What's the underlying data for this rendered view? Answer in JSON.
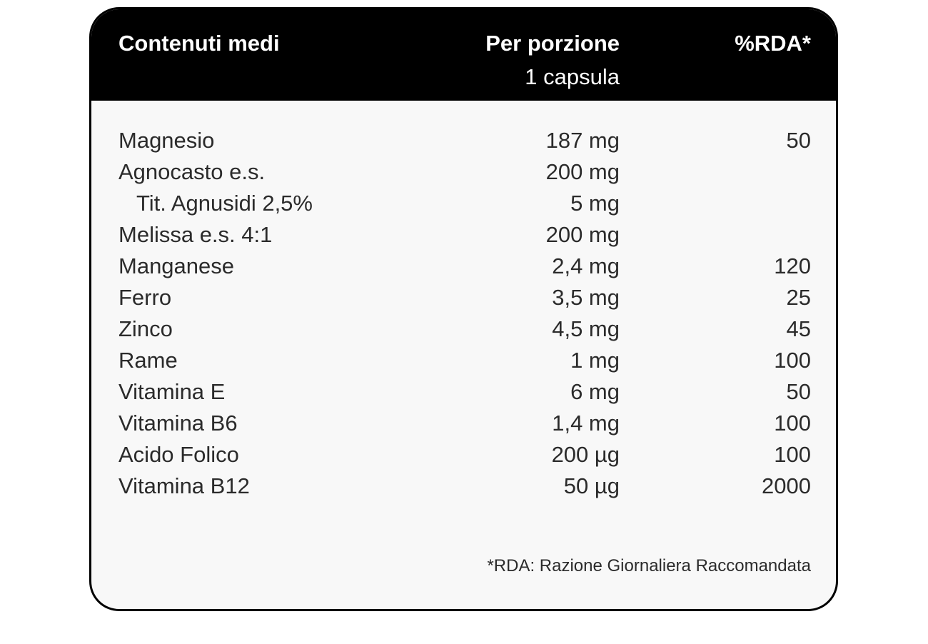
{
  "table": {
    "header": {
      "name_label": "Contenuti medi",
      "amount_label": "Per porzione",
      "amount_sublabel": "1 capsula",
      "rda_label": "%RDA*"
    },
    "rows": [
      {
        "name": "Magnesio",
        "amount": "187 mg",
        "rda": "50"
      },
      {
        "name": "Agnocasto e.s.",
        "amount": "200 mg",
        "rda": ""
      },
      {
        "name": "Tit. Agnusidi 2,5%",
        "amount": "5 mg",
        "rda": ""
      },
      {
        "name": "Melissa e.s. 4:1",
        "amount": "200 mg",
        "rda": ""
      },
      {
        "name": "Manganese",
        "amount": "2,4 mg",
        "rda": "120"
      },
      {
        "name": "Ferro",
        "amount": "3,5 mg",
        "rda": "25"
      },
      {
        "name": "Zinco",
        "amount": "4,5 mg",
        "rda": "45"
      },
      {
        "name": "Rame",
        "amount": "1 mg",
        "rda": "100"
      },
      {
        "name": "Vitamina E",
        "amount": "6 mg",
        "rda": "50"
      },
      {
        "name": "Vitamina B6",
        "amount": "1,4 mg",
        "rda": "100"
      },
      {
        "name": "Acido Folico",
        "amount": "200 µg",
        "rda": "100"
      },
      {
        "name": "Vitamina B12",
        "amount": "50 µg",
        "rda": "2000"
      }
    ],
    "footnote": "*RDA: Razione Giornaliera Raccomandata"
  }
}
